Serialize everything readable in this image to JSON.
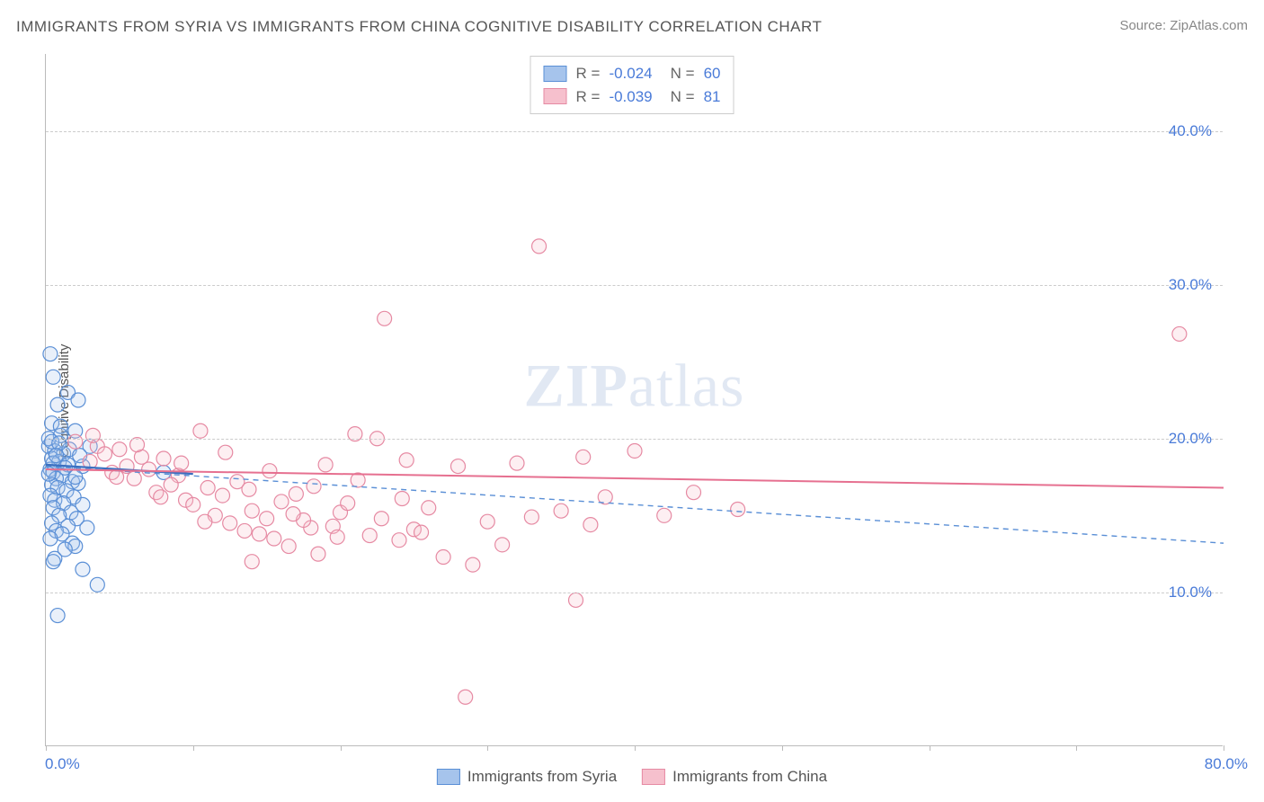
{
  "title": "IMMIGRANTS FROM SYRIA VS IMMIGRANTS FROM CHINA COGNITIVE DISABILITY CORRELATION CHART",
  "source": "Source: ZipAtlas.com",
  "y_axis_label": "Cognitive Disability",
  "watermark": "ZIPatlas",
  "chart": {
    "type": "scatter",
    "xlim": [
      0,
      80
    ],
    "ylim": [
      0,
      45
    ],
    "y_ticks": [
      10,
      20,
      30,
      40
    ],
    "y_tick_labels": [
      "10.0%",
      "20.0%",
      "30.0%",
      "40.0%"
    ],
    "x_ticks": [
      0,
      10,
      20,
      30,
      40,
      50,
      60,
      70,
      80
    ],
    "x_tick_labels_shown": {
      "0": "0.0%",
      "80": "80.0%"
    },
    "grid_color": "#cccccc",
    "background_color": "#ffffff",
    "axis_color": "#bbbbbb",
    "tick_label_color": "#4a7bd8",
    "point_radius": 8,
    "series": [
      {
        "name": "Immigrants from Syria",
        "color_fill": "#a6c4ec",
        "color_stroke": "#5a8fd6",
        "trend": {
          "y_start": 18.2,
          "y_end": 13.2,
          "style": "dashed",
          "color": "#5a8fd6",
          "width": 1.4
        },
        "trend_solid_segment": {
          "x_end": 10,
          "y_start": 18.3,
          "y_end": 17.7,
          "color": "#3a6fc0",
          "width": 2.2
        },
        "R": "-0.024",
        "N": "60",
        "points": [
          [
            0.3,
            25.5
          ],
          [
            0.5,
            24.0
          ],
          [
            1.5,
            23.0
          ],
          [
            2.2,
            22.5
          ],
          [
            0.8,
            22.2
          ],
          [
            0.4,
            21.0
          ],
          [
            1.0,
            20.2
          ],
          [
            2.0,
            20.5
          ],
          [
            0.2,
            19.5
          ],
          [
            0.6,
            19.2
          ],
          [
            1.2,
            19.0
          ],
          [
            0.4,
            18.7
          ],
          [
            0.9,
            18.5
          ],
          [
            1.5,
            18.3
          ],
          [
            0.3,
            18.0
          ],
          [
            2.5,
            18.2
          ],
          [
            0.5,
            17.8
          ],
          [
            1.1,
            17.6
          ],
          [
            0.7,
            17.4
          ],
          [
            1.8,
            17.2
          ],
          [
            0.4,
            17.0
          ],
          [
            2.2,
            17.1
          ],
          [
            0.8,
            16.8
          ],
          [
            1.4,
            16.6
          ],
          [
            0.3,
            16.3
          ],
          [
            1.9,
            16.2
          ],
          [
            0.6,
            16.0
          ],
          [
            1.2,
            15.8
          ],
          [
            2.5,
            15.7
          ],
          [
            0.5,
            15.5
          ],
          [
            1.7,
            15.2
          ],
          [
            0.9,
            15.0
          ],
          [
            2.1,
            14.8
          ],
          [
            0.4,
            14.5
          ],
          [
            1.5,
            14.3
          ],
          [
            0.7,
            14.0
          ],
          [
            2.8,
            14.2
          ],
          [
            1.1,
            13.8
          ],
          [
            0.3,
            13.5
          ],
          [
            1.8,
            13.2
          ],
          [
            0.6,
            12.2
          ],
          [
            2.0,
            13.0
          ],
          [
            1.3,
            12.8
          ],
          [
            0.5,
            12.0
          ],
          [
            2.5,
            11.5
          ],
          [
            3.5,
            10.5
          ],
          [
            0.8,
            8.5
          ],
          [
            8.0,
            17.8
          ],
          [
            0.2,
            20.0
          ],
          [
            3.0,
            19.5
          ],
          [
            0.4,
            19.8
          ],
          [
            1.6,
            19.3
          ],
          [
            0.9,
            19.7
          ],
          [
            2.3,
            18.9
          ],
          [
            0.5,
            18.4
          ],
          [
            1.0,
            20.8
          ],
          [
            0.7,
            18.9
          ],
          [
            1.3,
            18.1
          ],
          [
            0.2,
            17.7
          ],
          [
            2.0,
            17.5
          ]
        ]
      },
      {
        "name": "Immigrants from China",
        "color_fill": "#f6c0cd",
        "color_stroke": "#e68aa3",
        "trend": {
          "y_start": 18.0,
          "y_end": 16.8,
          "style": "solid",
          "color": "#e67090",
          "width": 2.0
        },
        "R": "-0.039",
        "N": "81",
        "points": [
          [
            2.0,
            19.8
          ],
          [
            3.5,
            19.5
          ],
          [
            5.0,
            19.3
          ],
          [
            4.0,
            19.0
          ],
          [
            6.5,
            18.8
          ],
          [
            3.0,
            18.5
          ],
          [
            8.0,
            18.7
          ],
          [
            5.5,
            18.2
          ],
          [
            7.0,
            18.0
          ],
          [
            4.5,
            17.8
          ],
          [
            9.0,
            17.6
          ],
          [
            6.0,
            17.4
          ],
          [
            10.5,
            20.5
          ],
          [
            8.5,
            17.0
          ],
          [
            11.0,
            16.8
          ],
          [
            7.5,
            16.5
          ],
          [
            12.0,
            16.3
          ],
          [
            9.5,
            16.0
          ],
          [
            13.0,
            17.2
          ],
          [
            10.0,
            15.7
          ],
          [
            14.0,
            15.3
          ],
          [
            11.5,
            15.0
          ],
          [
            15.0,
            14.8
          ],
          [
            12.5,
            14.5
          ],
          [
            16.0,
            15.9
          ],
          [
            13.5,
            14.0
          ],
          [
            17.0,
            16.4
          ],
          [
            14.5,
            13.8
          ],
          [
            18.0,
            14.2
          ],
          [
            15.5,
            13.5
          ],
          [
            19.0,
            18.3
          ],
          [
            16.5,
            13.0
          ],
          [
            20.0,
            15.2
          ],
          [
            17.5,
            14.7
          ],
          [
            21.0,
            20.3
          ],
          [
            18.5,
            12.5
          ],
          [
            22.0,
            13.7
          ],
          [
            19.5,
            14.3
          ],
          [
            23.0,
            27.8
          ],
          [
            20.5,
            15.8
          ],
          [
            24.0,
            13.4
          ],
          [
            22.5,
            20.0
          ],
          [
            25.0,
            14.1
          ],
          [
            24.5,
            18.6
          ],
          [
            26.0,
            15.5
          ],
          [
            25.5,
            13.9
          ],
          [
            27.0,
            12.3
          ],
          [
            28.0,
            18.2
          ],
          [
            29.0,
            11.8
          ],
          [
            30.0,
            14.6
          ],
          [
            28.5,
            3.2
          ],
          [
            31.0,
            13.1
          ],
          [
            32.0,
            18.4
          ],
          [
            33.0,
            14.9
          ],
          [
            33.5,
            32.5
          ],
          [
            35.0,
            15.3
          ],
          [
            36.0,
            9.5
          ],
          [
            36.5,
            18.8
          ],
          [
            37.0,
            14.4
          ],
          [
            38.0,
            16.2
          ],
          [
            40.0,
            19.2
          ],
          [
            42.0,
            15.0
          ],
          [
            44.0,
            16.5
          ],
          [
            47.0,
            15.4
          ],
          [
            77.0,
            26.8
          ],
          [
            3.2,
            20.2
          ],
          [
            4.8,
            17.5
          ],
          [
            6.2,
            19.6
          ],
          [
            7.8,
            16.2
          ],
          [
            9.2,
            18.4
          ],
          [
            10.8,
            14.6
          ],
          [
            12.2,
            19.1
          ],
          [
            13.8,
            16.7
          ],
          [
            15.2,
            17.9
          ],
          [
            16.8,
            15.1
          ],
          [
            18.2,
            16.9
          ],
          [
            19.8,
            13.6
          ],
          [
            21.2,
            17.3
          ],
          [
            22.8,
            14.8
          ],
          [
            24.2,
            16.1
          ],
          [
            14.0,
            12.0
          ]
        ]
      }
    ]
  },
  "legend_top": {
    "rows": [
      {
        "swatch_fill": "#a6c4ec",
        "swatch_stroke": "#5a8fd6",
        "R": "-0.024",
        "N": "60"
      },
      {
        "swatch_fill": "#f6c0cd",
        "swatch_stroke": "#e68aa3",
        "R": "-0.039",
        "N": "81"
      }
    ]
  },
  "legend_bottom": [
    {
      "swatch_fill": "#a6c4ec",
      "swatch_stroke": "#5a8fd6",
      "label": "Immigrants from Syria"
    },
    {
      "swatch_fill": "#f6c0cd",
      "swatch_stroke": "#e68aa3",
      "label": "Immigrants from China"
    }
  ]
}
